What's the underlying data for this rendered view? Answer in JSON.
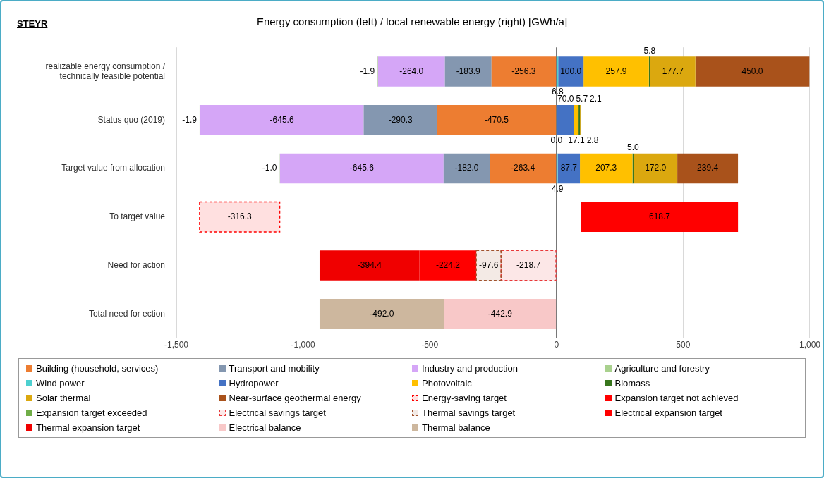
{
  "chart_data": {
    "type": "bar",
    "orientation": "horizontal",
    "stacked": true,
    "title": "STEYR",
    "subtitle": "Energy consumption (left) / local renewable energy (right) [GWh/a]",
    "categories": [
      "realizable energy consumption / technically feasible potential",
      "Status quo (2019)",
      "Target value from allocation",
      "To target value",
      "Need for action",
      "Total need for ection"
    ],
    "xlim": [
      -1500,
      1000
    ],
    "xticks": [
      {
        "value": -1500,
        "label": "-1,500"
      },
      {
        "value": -1000,
        "label": "-1,000"
      },
      -500,
      0,
      500,
      {
        "value": 1000,
        "label": "1,000"
      }
    ],
    "grid": "x",
    "legend": "bottom",
    "series": [
      {
        "name": "Building (household, services)",
        "color": "#ed7d31",
        "values": [
          -256.3,
          -470.5,
          -263.4,
          null,
          null,
          null
        ],
        "value_labels": [
          "-256.3",
          "-470.5",
          "-263.4",
          null,
          null,
          null
        ]
      },
      {
        "name": "Transport and mobility",
        "color": "#8497b0",
        "values": [
          -183.9,
          -290.3,
          -182.0,
          null,
          null,
          null
        ],
        "value_labels": [
          "-183.9",
          "-290.3",
          "-182.0",
          null,
          null,
          null
        ]
      },
      {
        "name": "Industry and production",
        "color": "#d5a6f7",
        "values": [
          -264.0,
          -645.6,
          -645.6,
          null,
          null,
          null
        ],
        "value_labels": [
          "-264.0",
          "-645.6",
          "-645.6",
          null,
          null,
          null
        ]
      },
      {
        "name": "Agriculture and forestry",
        "color": "#a9d18e",
        "values": [
          -1.9,
          -1.9,
          -1.0,
          null,
          null,
          null
        ],
        "value_labels": [
          "-1.9",
          "-1.9",
          "-1.0",
          null,
          null,
          null
        ]
      },
      {
        "name": "Wind power",
        "color": "#4dd0d0",
        "values": [
          6.8,
          0.0,
          4.9,
          null,
          null,
          null
        ],
        "value_labels": [
          "6.8",
          "0.0",
          "4.9",
          null,
          null,
          null
        ]
      },
      {
        "name": "Hydropower",
        "color": "#4472c4",
        "values": [
          100.0,
          70.0,
          87.7,
          null,
          null,
          null
        ],
        "value_labels": [
          "100.0",
          "70.0",
          "87.7",
          null,
          null,
          null
        ]
      },
      {
        "name": "Photovoltaic",
        "color": "#ffc000",
        "values": [
          257.9,
          17.1,
          207.3,
          null,
          null,
          null
        ],
        "value_labels": [
          "257.9",
          "17.1",
          "207.3",
          null,
          null,
          null
        ]
      },
      {
        "name": "Biomass",
        "color": "#38761d",
        "values": [
          5.8,
          5.7,
          5.0,
          null,
          null,
          null
        ],
        "value_labels": [
          "5.8",
          "5.7",
          "5.0",
          null,
          null,
          null
        ]
      },
      {
        "name": "Solar thermal",
        "color": "#dba80f",
        "values": [
          177.7,
          2.8,
          172.0,
          null,
          null,
          null
        ],
        "value_labels": [
          "177.7",
          "2.8",
          "172.0",
          null,
          null,
          null
        ]
      },
      {
        "name": "Near-surface geothermal energy",
        "color": "#a9521b",
        "values": [
          450.0,
          2.1,
          239.4,
          null,
          null,
          null
        ],
        "value_labels": [
          "450.0",
          "2.1",
          "239.4",
          null,
          null,
          null
        ]
      },
      {
        "name": "Energy-saving target",
        "color": "#ff0000",
        "line_style": "dashed",
        "values": [
          null,
          null,
          null,
          -316.3,
          null,
          null
        ],
        "base": [
          null,
          null,
          null,
          -1092.0,
          null,
          null
        ],
        "value_labels": [
          null,
          null,
          null,
          "-316.3",
          null,
          null
        ]
      },
      {
        "name": "Expansion target not achieved",
        "color": "#ff0000",
        "values": [
          null,
          null,
          null,
          618.7,
          null,
          null
        ],
        "base": [
          null,
          null,
          null,
          97.7,
          null,
          null
        ],
        "value_labels": [
          null,
          null,
          null,
          "618.7",
          null,
          null
        ]
      },
      {
        "name": "Expansion target exceeded",
        "color": "#70ad47",
        "values": [
          null,
          null,
          null,
          null,
          null,
          null
        ]
      },
      {
        "name": "Electrical savings target",
        "color": "#e8393a",
        "line_style": "dashed",
        "values": [
          null,
          null,
          null,
          null,
          -218.7,
          null
        ],
        "value_labels": [
          null,
          null,
          null,
          null,
          "-218.7",
          null
        ]
      },
      {
        "name": "Thermal savings target",
        "color": "#a0522d",
        "line_style": "dashed",
        "values": [
          null,
          null,
          null,
          null,
          -97.6,
          null
        ],
        "value_labels": [
          null,
          null,
          null,
          null,
          "-97.6",
          null
        ]
      },
      {
        "name": "Electrical expansion target",
        "color": "#ff0000",
        "values": [
          null,
          null,
          null,
          null,
          -224.2,
          null
        ],
        "value_labels": [
          null,
          null,
          null,
          null,
          "-224.2",
          null
        ]
      },
      {
        "name": "Thermal expansion target",
        "color": "#f00000",
        "values": [
          null,
          null,
          null,
          null,
          -394.4,
          null
        ],
        "value_labels": [
          null,
          null,
          null,
          null,
          "-394.4",
          null
        ]
      },
      {
        "name": "Electrical balance",
        "color": "#f8c8c8",
        "values": [
          null,
          null,
          null,
          null,
          null,
          -442.9
        ],
        "value_labels": [
          null,
          null,
          null,
          null,
          null,
          "-442.9"
        ]
      },
      {
        "name": "Thermal balance",
        "color": "#cdb79e",
        "values": [
          null,
          null,
          null,
          null,
          null,
          -492.0
        ],
        "value_labels": [
          null,
          null,
          null,
          null,
          null,
          "-492.0"
        ]
      }
    ]
  }
}
